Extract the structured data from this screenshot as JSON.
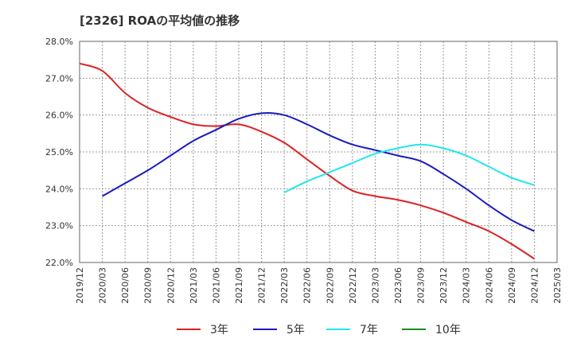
{
  "chart_data": {
    "type": "line",
    "title": "[2326]  ROAの平均値の推移",
    "xlabel": "",
    "ylabel": "",
    "y_ticks": [
      "28.0%",
      "27.0%",
      "26.0%",
      "25.0%",
      "24.0%",
      "23.0%",
      "22.0%"
    ],
    "ylim": [
      22.0,
      28.0
    ],
    "x_ticks": [
      "2019/12",
      "2020/03",
      "2020/06",
      "2020/09",
      "2020/12",
      "2021/03",
      "2021/06",
      "2021/09",
      "2021/12",
      "2022/03",
      "2022/06",
      "2022/09",
      "2022/12",
      "2023/03",
      "2023/06",
      "2023/09",
      "2023/12",
      "2024/03",
      "2024/06",
      "2024/09",
      "2024/12",
      "2025/03"
    ],
    "grid": true,
    "legend_position": "bottom",
    "series": [
      {
        "name": "3年",
        "color": "#dd2222",
        "points": [
          [
            "2019/12",
            27.4
          ],
          [
            "2020/03",
            27.2
          ],
          [
            "2020/06",
            26.6
          ],
          [
            "2020/09",
            26.2
          ],
          [
            "2020/12",
            25.95
          ],
          [
            "2021/03",
            25.75
          ],
          [
            "2021/06",
            25.7
          ],
          [
            "2021/09",
            25.75
          ],
          [
            "2021/12",
            25.55
          ],
          [
            "2022/03",
            25.25
          ],
          [
            "2022/06",
            24.8
          ],
          [
            "2022/09",
            24.35
          ],
          [
            "2022/12",
            23.95
          ],
          [
            "2023/03",
            23.8
          ],
          [
            "2023/06",
            23.7
          ],
          [
            "2023/09",
            23.55
          ],
          [
            "2023/12",
            23.35
          ],
          [
            "2024/03",
            23.1
          ],
          [
            "2024/06",
            22.85
          ],
          [
            "2024/09",
            22.5
          ],
          [
            "2024/12",
            22.1
          ]
        ]
      },
      {
        "name": "5年",
        "color": "#1b1bbf",
        "points": [
          [
            "2020/03",
            23.8
          ],
          [
            "2020/06",
            24.15
          ],
          [
            "2020/09",
            24.5
          ],
          [
            "2020/12",
            24.9
          ],
          [
            "2021/03",
            25.3
          ],
          [
            "2021/06",
            25.6
          ],
          [
            "2021/09",
            25.9
          ],
          [
            "2021/12",
            26.05
          ],
          [
            "2022/03",
            26.0
          ],
          [
            "2022/06",
            25.75
          ],
          [
            "2022/09",
            25.45
          ],
          [
            "2022/12",
            25.2
          ],
          [
            "2023/03",
            25.05
          ],
          [
            "2023/06",
            24.9
          ],
          [
            "2023/09",
            24.75
          ],
          [
            "2023/12",
            24.4
          ],
          [
            "2024/03",
            24.0
          ],
          [
            "2024/06",
            23.55
          ],
          [
            "2024/09",
            23.15
          ],
          [
            "2024/12",
            22.85
          ]
        ]
      },
      {
        "name": "7年",
        "color": "#22e5ee",
        "points": [
          [
            "2022/03",
            23.9
          ],
          [
            "2022/06",
            24.2
          ],
          [
            "2022/09",
            24.45
          ],
          [
            "2022/12",
            24.7
          ],
          [
            "2023/03",
            24.95
          ],
          [
            "2023/06",
            25.1
          ],
          [
            "2023/09",
            25.2
          ],
          [
            "2023/12",
            25.1
          ],
          [
            "2024/03",
            24.9
          ],
          [
            "2024/06",
            24.6
          ],
          [
            "2024/09",
            24.3
          ],
          [
            "2024/12",
            24.1
          ]
        ]
      },
      {
        "name": "10年",
        "color": "#1a8c1a",
        "points": []
      }
    ]
  }
}
